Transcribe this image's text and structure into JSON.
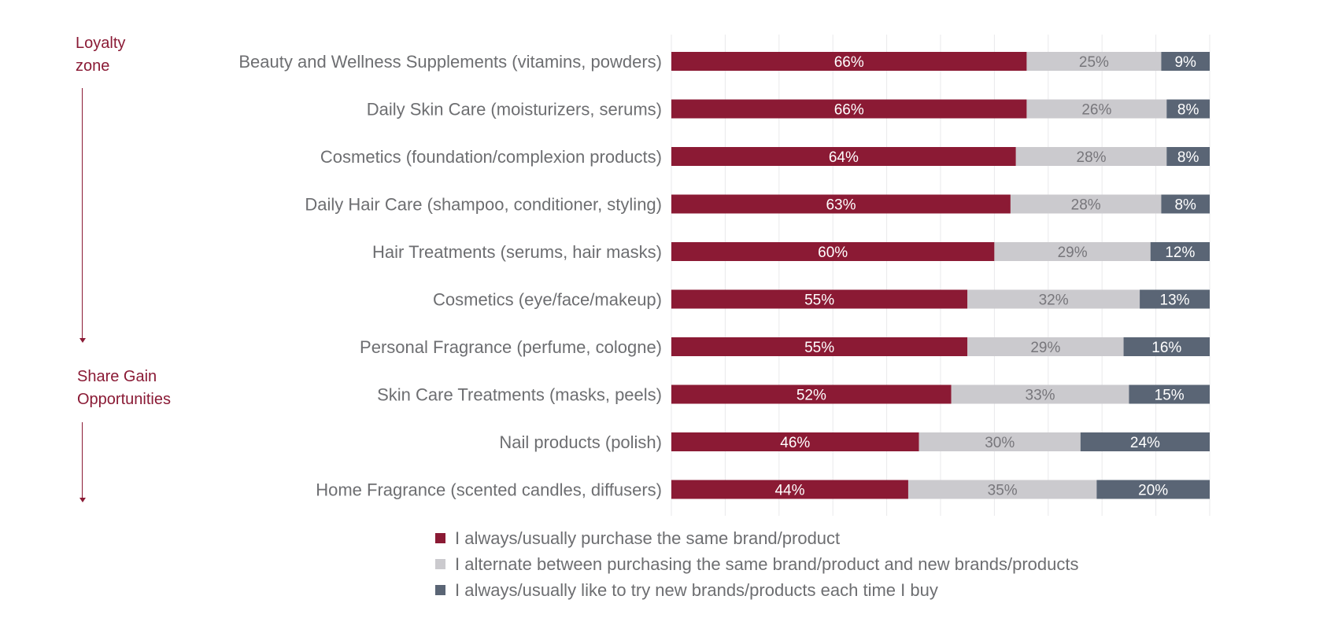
{
  "zones": {
    "loyalty_line1": "Loyalty",
    "loyalty_line2": "zone",
    "share_line1": "Share Gain",
    "share_line2": "Opportunities"
  },
  "chart_data": {
    "type": "bar",
    "orientation": "horizontal",
    "stacked": true,
    "title": "",
    "xlabel": "",
    "ylabel": "",
    "xlim": [
      0,
      100
    ],
    "grid": true,
    "legend_position": "bottom",
    "categories": [
      "Beauty and Wellness Supplements (vitamins, powders)",
      "Daily Skin Care (moisturizers, serums)",
      "Cosmetics (foundation/complexion products)",
      "Daily Hair Care (shampoo, conditioner, styling)",
      "Hair Treatments (serums, hair masks)",
      "Cosmetics (eye/face/makeup)",
      "Personal Fragrance (perfume, cologne)",
      "Skin Care Treatments (masks, peels)",
      "Nail products (polish)",
      "Home Fragrance (scented candles, diffusers)"
    ],
    "series": [
      {
        "name": "I always/usually purchase the same brand/product",
        "color": "#8b1a34",
        "label_color": "#ffffff",
        "values": [
          66,
          66,
          64,
          63,
          60,
          55,
          55,
          52,
          46,
          44
        ],
        "labels": [
          "66%",
          "66%",
          "64%",
          "63%",
          "60%",
          "55%",
          "55%",
          "52%",
          "46%",
          "44%"
        ]
      },
      {
        "name": "I alternate between purchasing the same brand/product and new brands/products",
        "color": "#cbcace",
        "label_color": "#77767b",
        "values": [
          25,
          26,
          28,
          28,
          29,
          32,
          29,
          33,
          30,
          35
        ],
        "labels": [
          "25%",
          "26%",
          "28%",
          "28%",
          "29%",
          "32%",
          "29%",
          "33%",
          "30%",
          "35%"
        ]
      },
      {
        "name": "I always/usually like to try new brands/products each time I buy",
        "color": "#5a6575",
        "label_color": "#ffffff",
        "values": [
          9,
          8,
          8,
          8,
          12,
          13,
          16,
          15,
          24,
          20
        ],
        "labels": [
          "9%",
          "8%",
          "8%",
          "8%",
          "12%",
          "13%",
          "16%",
          "15%",
          "24%",
          "20%"
        ]
      }
    ]
  }
}
